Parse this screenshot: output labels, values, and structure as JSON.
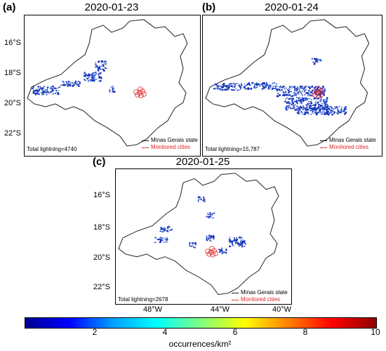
{
  "panels": [
    {
      "letter": "(a)",
      "date": "2020-01-23",
      "total": "Total lightning=4740",
      "lat_labels": [
        "16°S",
        "18°S",
        "20°S",
        "22°S"
      ],
      "lon_labels": []
    },
    {
      "letter": "(b)",
      "date": "2020-01-24",
      "total": "Total lightning=15,787",
      "lat_labels": [
        "16°S",
        "18°S",
        "20°S",
        "22°S"
      ],
      "lon_labels": []
    },
    {
      "letter": "(c)",
      "date": "2020-01-25",
      "total": "Total lightning=2678",
      "lat_labels": [
        "16°S",
        "18°S",
        "20°S",
        "22°S"
      ],
      "lon_labels": [
        "48°W",
        "44°W",
        "40°W"
      ]
    }
  ],
  "legend": {
    "state": "Minas Gerais state",
    "cities": "Monitored cities"
  },
  "colorbar": {
    "ticks": [
      "2",
      "4",
      "6",
      "8",
      "10"
    ],
    "tick_values": [
      2,
      4,
      6,
      8,
      10
    ],
    "range": [
      0,
      10
    ],
    "label": "occurrences/km²",
    "colors": [
      "#00008f",
      "#0000ff",
      "#00a0ff",
      "#00ffff",
      "#80ff80",
      "#ffff00",
      "#ff8000",
      "#ff0000",
      "#8f0000"
    ]
  },
  "colors": {
    "lightning": "#1030b8",
    "cities": "#e02020",
    "state_border": "#333333"
  }
}
